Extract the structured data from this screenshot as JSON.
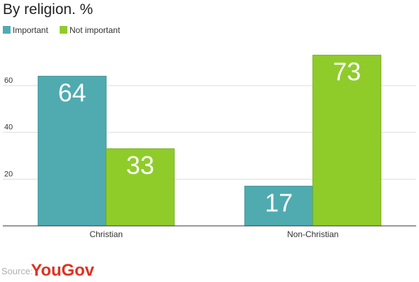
{
  "chart_data": {
    "type": "bar",
    "title": "By religion. %",
    "categories": [
      "Christian",
      "Non-Christian"
    ],
    "series": [
      {
        "name": "Important",
        "values": [
          64,
          17
        ],
        "color": "#4fabb0"
      },
      {
        "name": "Not important",
        "values": [
          33,
          73
        ],
        "color": "#8fcc2a"
      }
    ],
    "ylim": [
      0,
      75
    ],
    "yticks": [
      20,
      40,
      60
    ],
    "grid": true,
    "legend_position": "top-left",
    "xlabel": "",
    "ylabel": ""
  },
  "footer": {
    "source_label": "Source:",
    "brand_you": "You",
    "brand_gov": "Gov",
    "brand_you_color": "#e0301e",
    "brand_gov_color": "#e0301e"
  }
}
